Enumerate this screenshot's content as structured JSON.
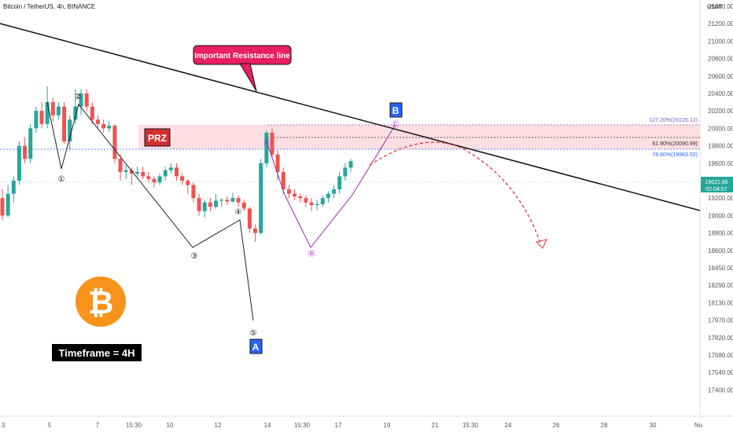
{
  "header": {
    "title": "Bitcoin / TetherUS, 4h, BINANCE",
    "currency": "USDT"
  },
  "annotations": {
    "resistance_label": "Important Resistance line",
    "prz_label": "PRZ",
    "timeframe_label": "Timeframe = 4H",
    "wave_a_label": "A",
    "wave_b_label": "B",
    "waves": [
      "①",
      "②",
      "③",
      "④",
      "⑤"
    ],
    "sub_waves": [
      "Ⓐ",
      "Ⓑ",
      "Ⓒ"
    ]
  },
  "fib_levels": [
    {
      "label": "127.20%(20226.12)",
      "value": 20226.12
    },
    {
      "label": "61.80%(20090.89)",
      "value": 20090.89
    },
    {
      "label": "78.60%(19963.02)",
      "value": 19963.02
    }
  ],
  "price_tag": {
    "price": "19621.85",
    "countdown": "02:04:57",
    "value": 19621.85
  },
  "colors": {
    "up": "#26a69a",
    "down": "#ef5350",
    "prz_fill": "#f8c9d0",
    "accent": "#2962ff",
    "annotation": "#e91e63",
    "bitcoin": "#f7931a",
    "purple": "#9c27b0"
  },
  "chart_data": {
    "type": "candlestick",
    "y_ticks": [
      21400,
      21200,
      21000,
      20800,
      20600,
      20400,
      20200,
      20000,
      19800,
      19600,
      19400,
      19200,
      19000,
      18800,
      18600,
      18450,
      18290,
      18130,
      17970,
      17820,
      17680,
      17540,
      17400
    ],
    "x_ticks": [
      "3",
      "5",
      "7",
      "15:30",
      "10",
      "12",
      "14",
      "15:30",
      "17",
      "19",
      "21",
      "15:30",
      "24",
      "26",
      "28",
      "30",
      "No"
    ],
    "candles": [
      [
        19200,
        19000,
        19300,
        18950
      ],
      [
        19000,
        19250,
        19350,
        18980
      ],
      [
        19250,
        19400,
        19450,
        19150
      ],
      [
        19400,
        19800,
        19850,
        19350
      ],
      [
        19800,
        19650,
        19900,
        19600
      ],
      [
        19650,
        20000,
        20050,
        19600
      ],
      [
        20000,
        20200,
        20250,
        19950
      ],
      [
        20200,
        20050,
        20300,
        20000
      ],
      [
        20050,
        20300,
        20480,
        20000
      ],
      [
        20300,
        20150,
        20350,
        20080
      ],
      [
        20150,
        20250,
        20300,
        20100
      ],
      [
        20250,
        19850,
        20300,
        19820
      ],
      [
        19850,
        20100,
        20150,
        19750
      ],
      [
        20100,
        20250,
        20450,
        20050
      ],
      [
        20250,
        20400,
        20450,
        20150
      ],
      [
        20400,
        20250,
        20450,
        20200
      ],
      [
        20250,
        20100,
        20300,
        20050
      ],
      [
        20100,
        20050,
        20150,
        20000
      ],
      [
        20050,
        20000,
        20100,
        19950
      ],
      [
        20000,
        20030,
        20080,
        19960
      ],
      [
        20030,
        19650,
        20050,
        19600
      ],
      [
        19650,
        19500,
        19700,
        19400
      ],
      [
        19500,
        19520,
        19580,
        19420
      ],
      [
        19520,
        19480,
        19550,
        19350
      ],
      [
        19480,
        19500,
        19560,
        19450
      ],
      [
        19500,
        19450,
        19560,
        19420
      ],
      [
        19450,
        19420,
        19500,
        19380
      ],
      [
        19420,
        19380,
        19450,
        19320
      ],
      [
        19380,
        19450,
        19480,
        19350
      ],
      [
        19450,
        19520,
        19560,
        19400
      ],
      [
        19520,
        19550,
        19600,
        19480
      ],
      [
        19550,
        19450,
        19600,
        19400
      ],
      [
        19450,
        19400,
        19480,
        19350
      ],
      [
        19400,
        19350,
        19420,
        19250
      ],
      [
        19350,
        19200,
        19380,
        19150
      ],
      [
        19200,
        19050,
        19250,
        19000
      ],
      [
        19050,
        19150,
        19180,
        18980
      ],
      [
        19150,
        19100,
        19200,
        19050
      ],
      [
        19100,
        19170,
        19250,
        19080
      ],
      [
        19170,
        19180,
        19200,
        19100
      ],
      [
        19180,
        19160,
        19220,
        19120
      ],
      [
        19160,
        19200,
        19260,
        19150
      ],
      [
        19200,
        19150,
        19230,
        19100
      ],
      [
        19150,
        19080,
        19180,
        19050
      ],
      [
        19080,
        18850,
        19100,
        18800
      ],
      [
        18850,
        18800,
        18900,
        18700
      ],
      [
        18800,
        19600,
        19650,
        18780
      ],
      [
        19600,
        19950,
        19980,
        19550
      ],
      [
        19950,
        19700,
        20000,
        19650
      ],
      [
        19700,
        19500,
        19750,
        19400
      ],
      [
        19500,
        19300,
        19550,
        19250
      ],
      [
        19300,
        19250,
        19350,
        19200
      ],
      [
        19250,
        19220,
        19300,
        19180
      ],
      [
        19220,
        19200,
        19250,
        19150
      ],
      [
        19200,
        19150,
        19230,
        19100
      ],
      [
        19150,
        19120,
        19200,
        19050
      ],
      [
        19120,
        19130,
        19180,
        19060
      ],
      [
        19130,
        19200,
        19230,
        19100
      ],
      [
        19200,
        19250,
        19280,
        19150
      ],
      [
        19250,
        19300,
        19350,
        19200
      ],
      [
        19300,
        19450,
        19500,
        19250
      ],
      [
        19450,
        19550,
        19600,
        19400
      ],
      [
        19550,
        19622,
        19650,
        19500
      ]
    ],
    "ylim": [
      17400,
      21500
    ]
  }
}
